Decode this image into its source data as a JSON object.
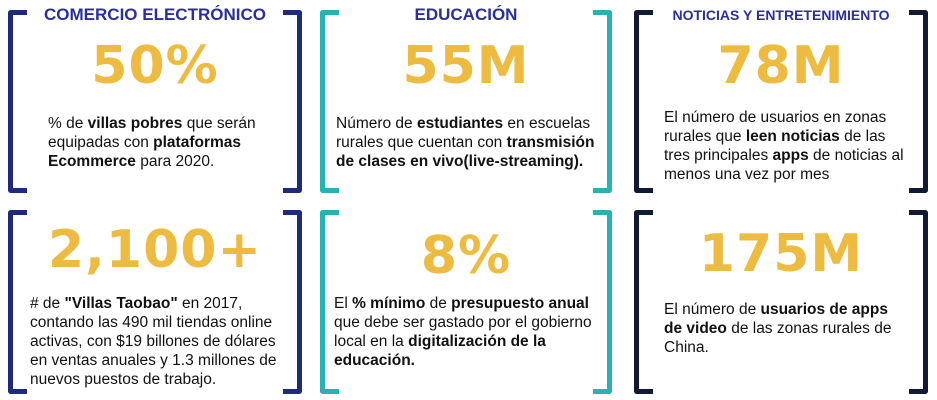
{
  "colors": {
    "bracket_navy": "#1f2a7a",
    "bracket_teal": "#29b2b3",
    "bracket_dark": "#121a33",
    "number_gold": "#edbb3f",
    "header_blue": "#2a2fa0"
  },
  "columns": [
    {
      "header": "COMERCIO ELECTRÓNICO"
    },
    {
      "header": "EDUCACIÓN"
    },
    {
      "header": "NOTICIAS Y ENTRETENIMIENTO"
    }
  ],
  "cards": {
    "ecommerce_top": {
      "value": "50%",
      "desc": [
        {
          "t": "% de ",
          "b": false
        },
        {
          "t": "villas pobres",
          "b": true
        },
        {
          "t": " que serán equipadas con ",
          "b": false
        },
        {
          "t": "plataformas Ecommerce",
          "b": true
        },
        {
          "t": " para 2020.",
          "b": false
        }
      ]
    },
    "education_top": {
      "value": "55M",
      "desc": [
        {
          "t": "Número de ",
          "b": false
        },
        {
          "t": "estudiantes",
          "b": true
        },
        {
          "t": " en escuelas rurales que cuentan con ",
          "b": false
        },
        {
          "t": "transmisión de clases en vivo(live-streaming).",
          "b": true
        }
      ]
    },
    "news_top": {
      "value": "78M",
      "desc": [
        {
          "t": "El número de usuarios en zonas rurales que ",
          "b": false
        },
        {
          "t": "leen noticias",
          "b": true
        },
        {
          "t": " de las tres principales ",
          "b": false
        },
        {
          "t": "apps",
          "b": true
        },
        {
          "t": " de noticias al menos una vez por mes",
          "b": false
        }
      ]
    },
    "ecommerce_bottom": {
      "value": "2,100+",
      "desc": [
        {
          "t": "# de ",
          "b": false
        },
        {
          "t": "\"Villas Taobao\"",
          "b": true
        },
        {
          "t": " en 2017, contando las 490 mil tiendas online activas, con $19 billones de dólares en ventas anuales y 1.3 millones de nuevos puestos de trabajo.",
          "b": false
        }
      ]
    },
    "education_bottom": {
      "value": "8%",
      "desc": [
        {
          "t": "El ",
          "b": false
        },
        {
          "t": "% mínimo",
          "b": true
        },
        {
          "t": " de ",
          "b": false
        },
        {
          "t": "presupuesto anual",
          "b": true
        },
        {
          "t": " que debe ser gastado por el gobierno local en la ",
          "b": false
        },
        {
          "t": "digitalización de la educación.",
          "b": true
        }
      ]
    },
    "news_bottom": {
      "value": "175M",
      "desc": [
        {
          "t": "El número de ",
          "b": false
        },
        {
          "t": "usuarios de apps de video",
          "b": true
        },
        {
          "t": " de las zonas rurales de China.",
          "b": false
        }
      ]
    }
  }
}
